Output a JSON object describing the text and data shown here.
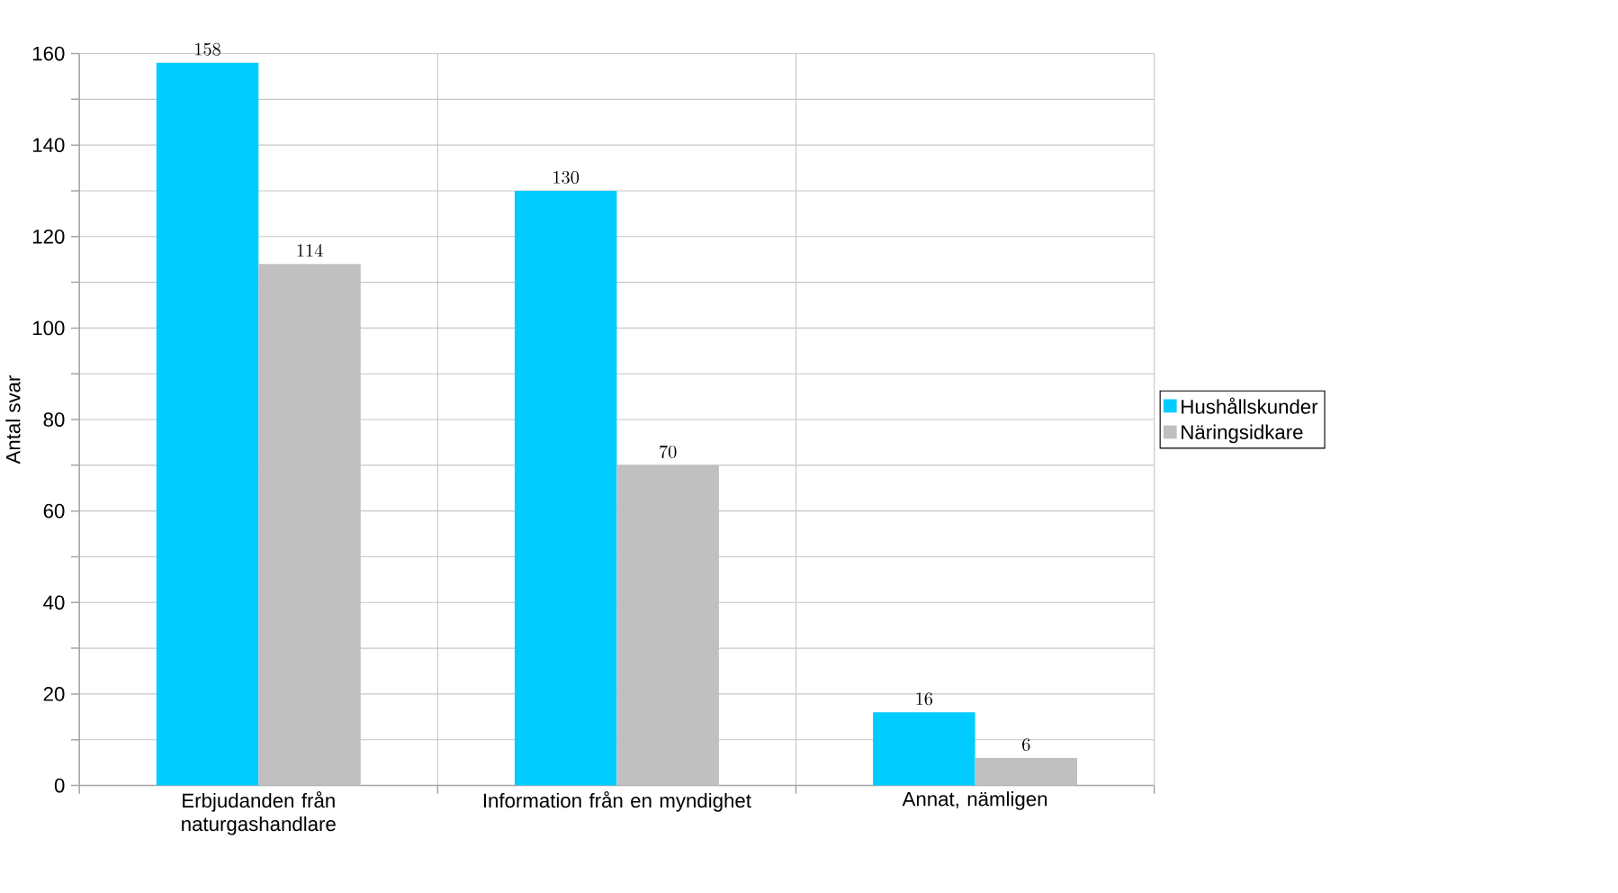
{
  "chart_data": {
    "type": "bar",
    "ylabel": "Antal svar",
    "categories": [
      "Erbjudanden från naturgashandlare",
      "Information från en myndighet",
      "Annat, nämligen"
    ],
    "series": [
      {
        "name": "Hushållskunder",
        "color": "#00ccff",
        "values": [
          158,
          130,
          16
        ]
      },
      {
        "name": "Näringsidkare",
        "color": "#c0c0c0",
        "values": [
          114,
          70,
          6
        ]
      }
    ],
    "ylim": [
      0,
      160
    ],
    "yticks": [
      0,
      {
        "value": 10,
        "label": null
      },
      20,
      {
        "value": 30,
        "label": null
      },
      40,
      {
        "value": 50,
        "label": null
      },
      60,
      {
        "value": 70,
        "label": null
      },
      80,
      {
        "value": 90,
        "label": null
      },
      100,
      {
        "value": 110,
        "label": null
      },
      120,
      {
        "value": 130,
        "label": null
      },
      140,
      {
        "value": 150,
        "label": null
      },
      160
    ],
    "grid": true,
    "legend": "right",
    "data_labels": true
  }
}
